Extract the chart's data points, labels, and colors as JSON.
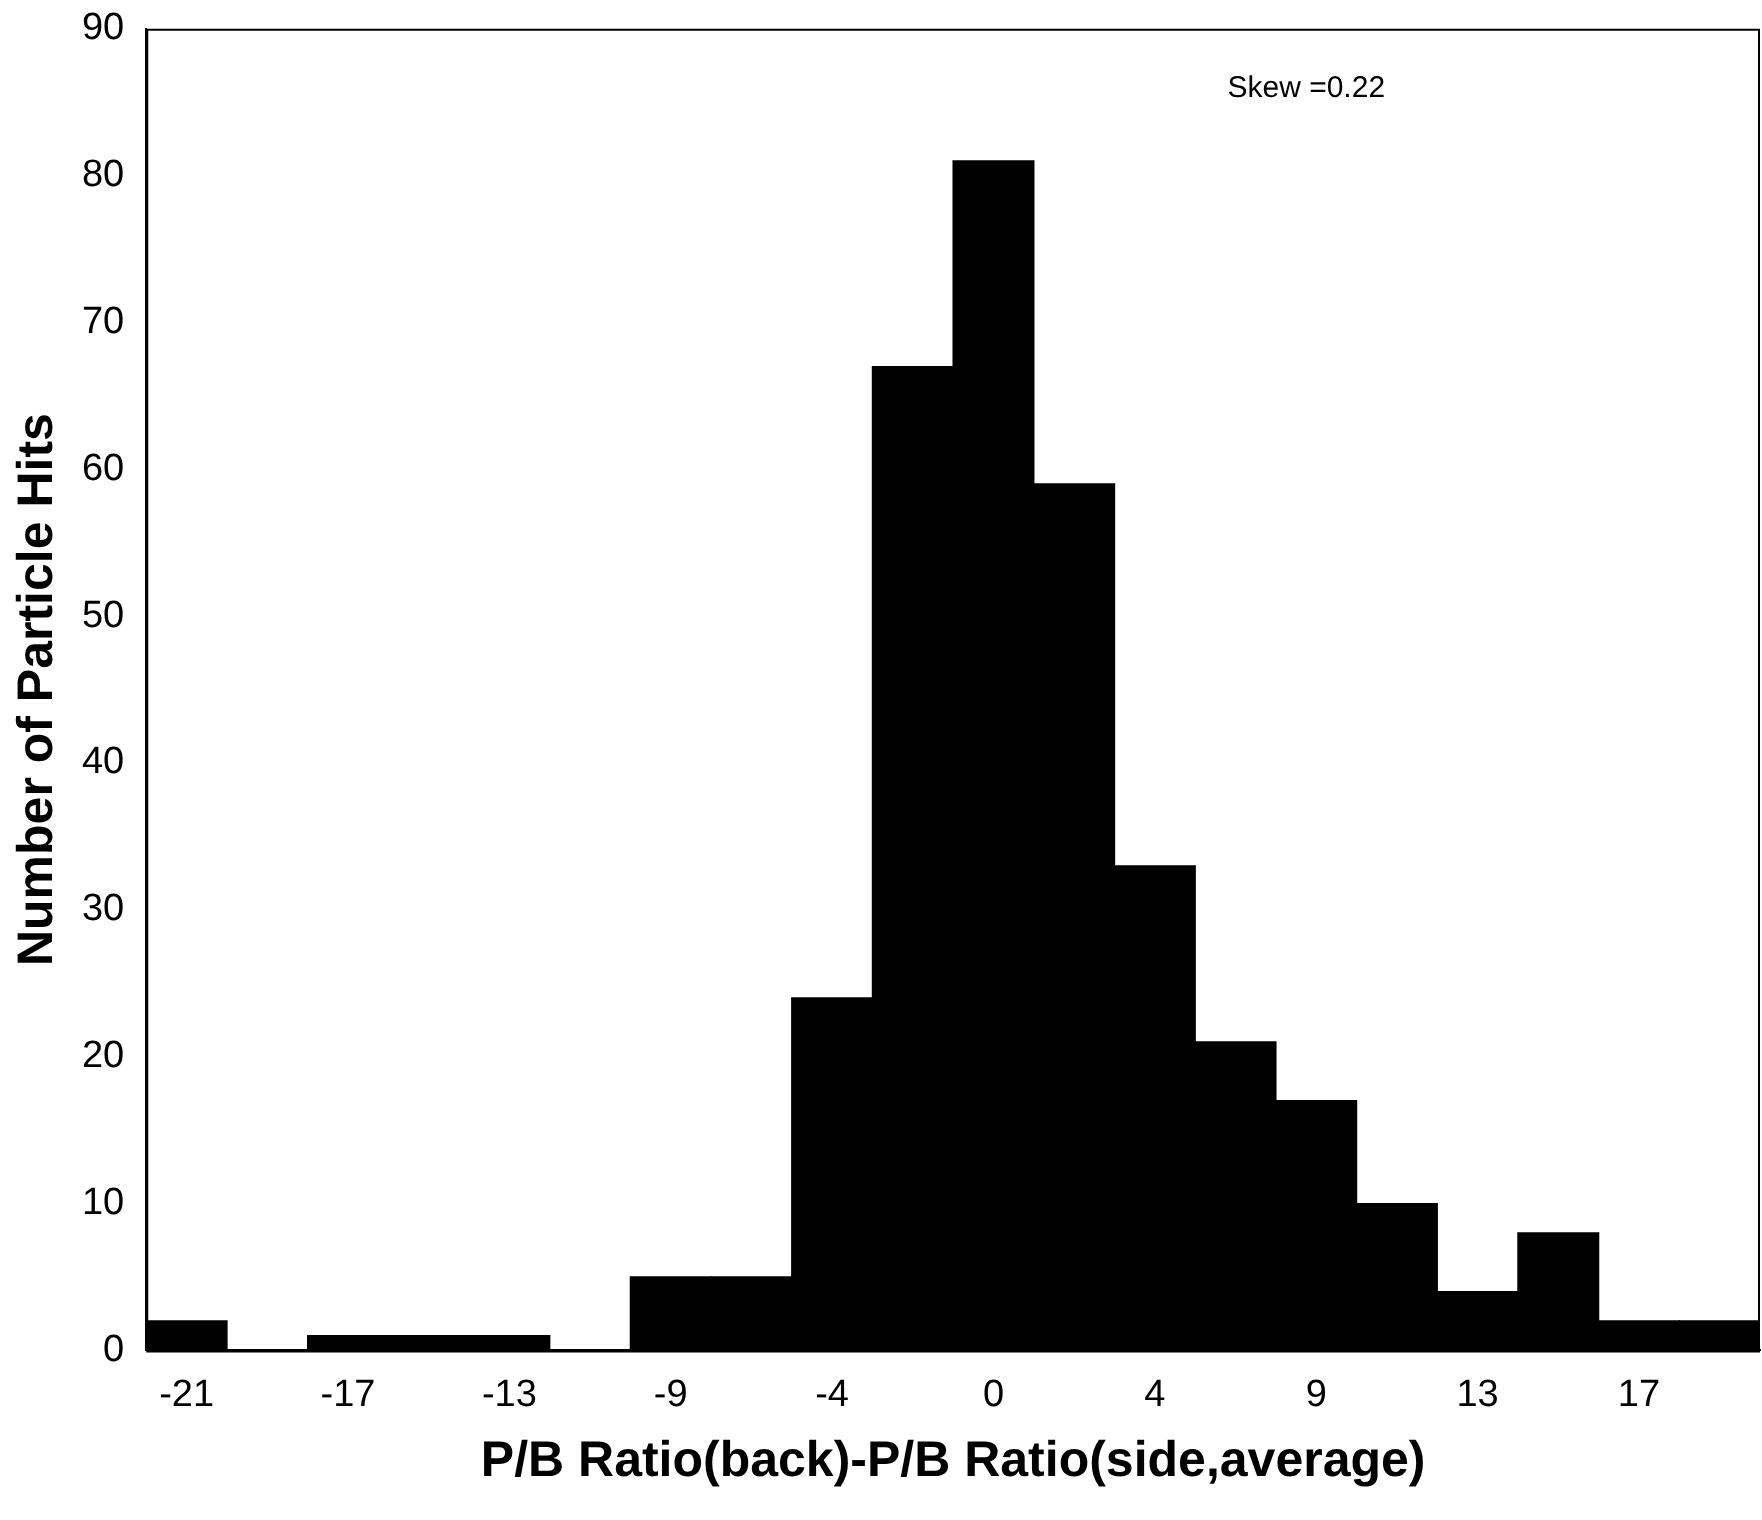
{
  "chart_data": {
    "type": "bar",
    "xlabel": "P/B Ratio(back)-P/B Ratio(side,average)",
    "ylabel": "Number of Particle Hits",
    "annotations": [
      "Skew =0.22"
    ],
    "categories": [
      "-21",
      null,
      "-17",
      null,
      "-13",
      null,
      "-9",
      null,
      "-4",
      null,
      "0",
      null,
      "4",
      null,
      "9",
      null,
      "13",
      null,
      "17",
      null
    ],
    "values": [
      2,
      0,
      1,
      1,
      1,
      0,
      5,
      5,
      24,
      67,
      81,
      59,
      33,
      21,
      17,
      10,
      4,
      8,
      2,
      2
    ],
    "color": "#000000",
    "ylim": [
      0,
      90
    ],
    "yticks": [
      0,
      10,
      20,
      30,
      40,
      50,
      60,
      70,
      80,
      90
    ],
    "grid": false,
    "legend": false
  }
}
